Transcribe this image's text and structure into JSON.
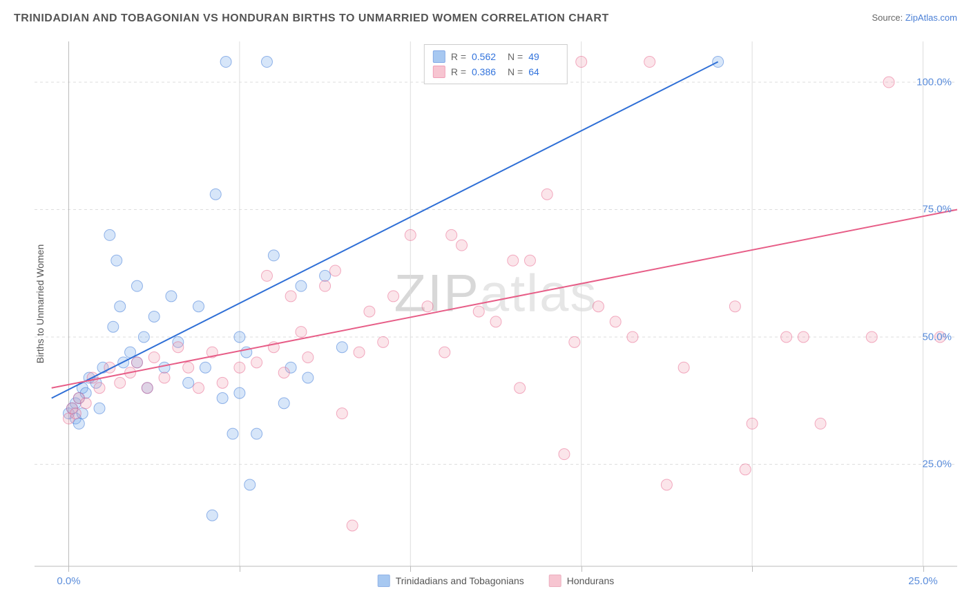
{
  "title": "TRINIDADIAN AND TOBAGONIAN VS HONDURAN BIRTHS TO UNMARRIED WOMEN CORRELATION CHART",
  "source_label": "Source: ",
  "source_value": "ZipAtlas.com",
  "y_axis_label": "Births to Unmarried Women",
  "watermark_a": "ZIP",
  "watermark_b": "atlas",
  "chart": {
    "type": "scatter",
    "background_color": "#ffffff",
    "grid_color": "#dddddd",
    "axis_color": "#bbbbbb",
    "tick_label_color": "#5b8ddb",
    "tick_fontsize": 15,
    "xlim": [
      -1,
      26
    ],
    "ylim": [
      5,
      108
    ],
    "x_ticks": [
      0,
      5,
      10,
      15,
      20,
      25
    ],
    "x_tick_labels": {
      "0": "0.0%",
      "25": "25.0%"
    },
    "y_ticks": [
      25,
      50,
      75,
      100
    ],
    "y_tick_labels": {
      "25": "25.0%",
      "50": "50.0%",
      "75": "75.0%",
      "100": "100.0%"
    },
    "marker_radius": 8,
    "marker_fill_opacity": 0.28,
    "marker_stroke_opacity": 0.5,
    "trend_line_width": 2,
    "series": [
      {
        "name": "Trinidadians and Tobagonians",
        "color": "#6ea4e8",
        "trend_color": "#2f6fd6",
        "r_value": "0.562",
        "n_value": "49",
        "trend": {
          "x1": -0.5,
          "y1": 38,
          "x2": 19,
          "y2": 104
        },
        "points": [
          [
            0,
            35
          ],
          [
            0.1,
            36
          ],
          [
            0.2,
            34
          ],
          [
            0.2,
            37
          ],
          [
            0.3,
            33
          ],
          [
            0.3,
            38
          ],
          [
            0.4,
            40
          ],
          [
            0.4,
            35
          ],
          [
            0.5,
            39
          ],
          [
            0.6,
            42
          ],
          [
            0.8,
            41
          ],
          [
            0.9,
            36
          ],
          [
            1.0,
            44
          ],
          [
            1.2,
            70
          ],
          [
            1.3,
            52
          ],
          [
            1.5,
            56
          ],
          [
            1.6,
            45
          ],
          [
            1.8,
            47
          ],
          [
            2.0,
            60
          ],
          [
            2.2,
            50
          ],
          [
            2.3,
            40
          ],
          [
            2.5,
            54
          ],
          [
            2.8,
            44
          ],
          [
            3.0,
            58
          ],
          [
            3.2,
            49
          ],
          [
            3.5,
            41
          ],
          [
            3.8,
            56
          ],
          [
            4.0,
            44
          ],
          [
            4.2,
            15
          ],
          [
            4.3,
            78
          ],
          [
            4.5,
            38
          ],
          [
            4.8,
            31
          ],
          [
            5.0,
            39
          ],
          [
            5.2,
            47
          ],
          [
            5.5,
            31
          ],
          [
            5.0,
            50
          ],
          [
            5.3,
            21
          ],
          [
            5.8,
            104
          ],
          [
            6.0,
            66
          ],
          [
            6.3,
            37
          ],
          [
            6.5,
            44
          ],
          [
            6.8,
            60
          ],
          [
            7.0,
            42
          ],
          [
            7.5,
            62
          ],
          [
            8.0,
            48
          ],
          [
            4.6,
            104
          ],
          [
            1.4,
            65
          ],
          [
            2.0,
            45
          ],
          [
            19.0,
            104
          ]
        ]
      },
      {
        "name": "Hondurans",
        "color": "#f2a0b3",
        "trend_color": "#e75d87",
        "r_value": "0.386",
        "n_value": "64",
        "trend": {
          "x1": -0.5,
          "y1": 40,
          "x2": 26,
          "y2": 75
        },
        "points": [
          [
            0,
            34
          ],
          [
            0.1,
            36
          ],
          [
            0.2,
            35
          ],
          [
            0.3,
            38
          ],
          [
            0.5,
            37
          ],
          [
            0.7,
            42
          ],
          [
            0.9,
            40
          ],
          [
            1.2,
            44
          ],
          [
            1.5,
            41
          ],
          [
            1.8,
            43
          ],
          [
            2.0,
            45
          ],
          [
            2.3,
            40
          ],
          [
            2.5,
            46
          ],
          [
            2.8,
            42
          ],
          [
            3.2,
            48
          ],
          [
            3.5,
            44
          ],
          [
            3.8,
            40
          ],
          [
            4.2,
            47
          ],
          [
            4.5,
            41
          ],
          [
            5.0,
            44
          ],
          [
            5.5,
            45
          ],
          [
            5.8,
            62
          ],
          [
            6.0,
            48
          ],
          [
            6.3,
            43
          ],
          [
            6.5,
            58
          ],
          [
            6.8,
            51
          ],
          [
            7.0,
            46
          ],
          [
            7.5,
            60
          ],
          [
            8.0,
            35
          ],
          [
            8.3,
            13
          ],
          [
            8.5,
            47
          ],
          [
            8.8,
            55
          ],
          [
            9.2,
            49
          ],
          [
            9.5,
            58
          ],
          [
            10.0,
            70
          ],
          [
            10.5,
            56
          ],
          [
            11.0,
            47
          ],
          [
            11.2,
            70
          ],
          [
            11.5,
            68
          ],
          [
            12.0,
            55
          ],
          [
            12.5,
            53
          ],
          [
            13.0,
            65
          ],
          [
            13.2,
            40
          ],
          [
            13.5,
            65
          ],
          [
            14.0,
            78
          ],
          [
            14.5,
            27
          ],
          [
            14.8,
            49
          ],
          [
            15.0,
            104
          ],
          [
            15.5,
            56
          ],
          [
            16.0,
            53
          ],
          [
            16.5,
            50
          ],
          [
            17.0,
            104
          ],
          [
            17.5,
            21
          ],
          [
            18.0,
            44
          ],
          [
            19.5,
            56
          ],
          [
            19.8,
            24
          ],
          [
            20.0,
            33
          ],
          [
            21.0,
            50
          ],
          [
            21.5,
            50
          ],
          [
            22.0,
            33
          ],
          [
            23.5,
            50
          ],
          [
            24.0,
            100
          ],
          [
            25.5,
            50
          ],
          [
            7.8,
            63
          ]
        ]
      }
    ]
  },
  "legend_top": {
    "r_label": "R =",
    "n_label": "N ="
  },
  "legend_bottom": [
    {
      "swatch": "#6ea4e8",
      "border": "#4a7fd6",
      "label": "Trinidadians and Tobagonians"
    },
    {
      "swatch": "#f2a0b3",
      "border": "#e07a95",
      "label": "Hondurans"
    }
  ]
}
